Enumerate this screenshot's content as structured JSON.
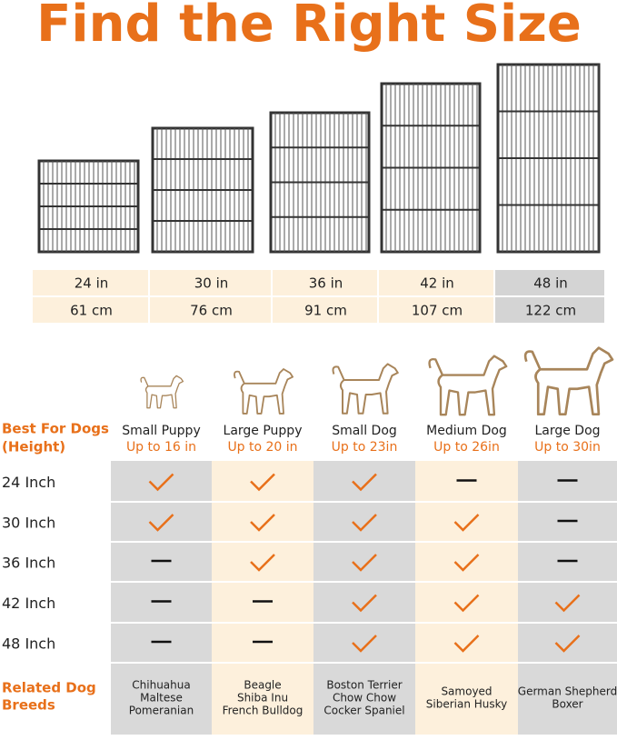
{
  "title": "Find the Right Size",
  "sizes": {
    "inches": [
      "24 in",
      "30 in",
      "36 in",
      "42 in",
      "48 in"
    ],
    "cm": [
      "61 cm",
      "76 cm",
      "91 cm",
      "107 cm",
      "122 cm"
    ]
  },
  "dog_table": {
    "header": [
      "Best For Dogs",
      "(Height)"
    ],
    "columns": [
      {
        "dog": "Small Puppy",
        "height": "Up to 16 in"
      },
      {
        "dog": "Large Puppy",
        "height": "Up to 20 in"
      },
      {
        "dog": "Small Dog",
        "height": "Up to 23in"
      },
      {
        "dog": "Medium Dog",
        "height": "Up to 26in"
      },
      {
        "dog": "Large Dog",
        "height": "Up to 30in"
      }
    ],
    "rows": [
      {
        "label": "24 Inch",
        "fits": [
          true,
          true,
          true,
          false,
          false
        ]
      },
      {
        "label": "30 Inch",
        "fits": [
          true,
          true,
          true,
          true,
          false
        ]
      },
      {
        "label": "36 Inch",
        "fits": [
          false,
          true,
          true,
          true,
          false
        ]
      },
      {
        "label": "42 Inch",
        "fits": [
          false,
          false,
          true,
          true,
          true
        ]
      },
      {
        "label": "48 Inch",
        "fits": [
          false,
          false,
          true,
          true,
          true
        ]
      }
    ],
    "breeds_label": [
      "Related Dog",
      "Breeds"
    ],
    "breeds": [
      [
        "Chihuahua",
        "Maltese",
        "Pomeranian"
      ],
      [
        "Beagle",
        "Shiba Inu",
        "French Bulldog"
      ],
      [
        "Boston Terrier",
        "Chow Chow",
        "Cocker Spaniel"
      ],
      [
        "Samoyed",
        "Siberian Husky"
      ],
      [
        "German Shepherd",
        "Boxer"
      ]
    ]
  }
}
